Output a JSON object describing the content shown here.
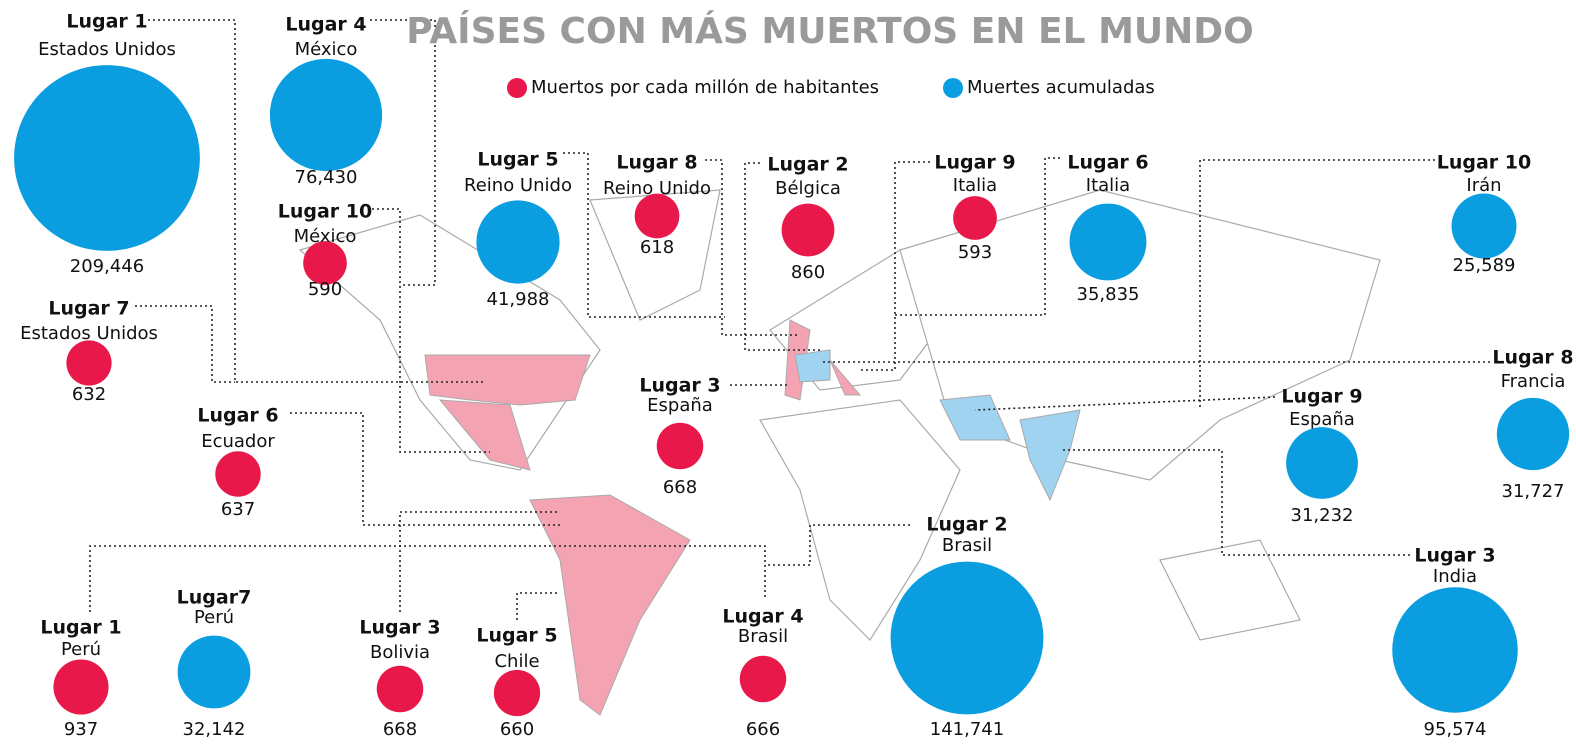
{
  "title": "PAÍSES CON MÁS MUERTOS EN EL MUNDO",
  "legend": [
    {
      "label": "Muertos por cada millón de habitantes",
      "color": "#e8194a"
    },
    {
      "label": "Muertes acumuladas",
      "color": "#0a9ee0"
    }
  ],
  "per_million": [
    {
      "rank": "Lugar 1",
      "country": "Perú",
      "value": 937,
      "value_label": "937"
    },
    {
      "rank": "Lugar 2",
      "country": "Bélgica",
      "value": 860,
      "value_label": "860"
    },
    {
      "rank": "Lugar 3",
      "country": "Bolivia",
      "value": 668,
      "value_label": "668"
    },
    {
      "rank": "Lugar 4",
      "country": "Brasil",
      "value": 666,
      "value_label": "666"
    },
    {
      "rank": "Lugar 5",
      "country": "Chile",
      "value": 660,
      "value_label": "660"
    },
    {
      "rank": "Lugar 6",
      "country": "Ecuador",
      "value": 637,
      "value_label": "637"
    },
    {
      "rank": "Lugar 7",
      "country": "Estados Unidos",
      "value": 632,
      "value_label": "632"
    },
    {
      "rank": "Lugar 8",
      "country": "Reino Unido",
      "value": 618,
      "value_label": "618"
    },
    {
      "rank": "Lugar 9",
      "country": "Italia",
      "value": 593,
      "value_label": "593"
    },
    {
      "rank": "Lugar 10",
      "country": "México",
      "value": 590,
      "value_label": "590"
    },
    {
      "rank": "Lugar 3",
      "country": "España",
      "value": 668,
      "value_label": "668"
    }
  ],
  "accumulated": [
    {
      "rank": "Lugar 1",
      "country": "Estados Unidos",
      "value": 209446,
      "value_label": "209,446"
    },
    {
      "rank": "Lugar 2",
      "country": "Brasil",
      "value": 141741,
      "value_label": "141,741"
    },
    {
      "rank": "Lugar 3",
      "country": "India",
      "value": 95574,
      "value_label": "95,574"
    },
    {
      "rank": "Lugar 4",
      "country": "México",
      "value": 76430,
      "value_label": "76,430"
    },
    {
      "rank": "Lugar 5",
      "country": "Reino Unido",
      "value": 41988,
      "value_label": "41,988"
    },
    {
      "rank": "Lugar 6",
      "country": "Italia",
      "value": 35835,
      "value_label": "35,835"
    },
    {
      "rank": "Lugar7",
      "country": "Perú",
      "value": 32142,
      "value_label": "32,142"
    },
    {
      "rank": "Lugar 8",
      "country": "Francia",
      "value": 31727,
      "value_label": "31,727"
    },
    {
      "rank": "Lugar 9",
      "country": "España",
      "value": 31232,
      "value_label": "31,232"
    },
    {
      "rank": "Lugar 10",
      "country": "Irán",
      "value": 25589,
      "value_label": "25,589"
    }
  ]
}
